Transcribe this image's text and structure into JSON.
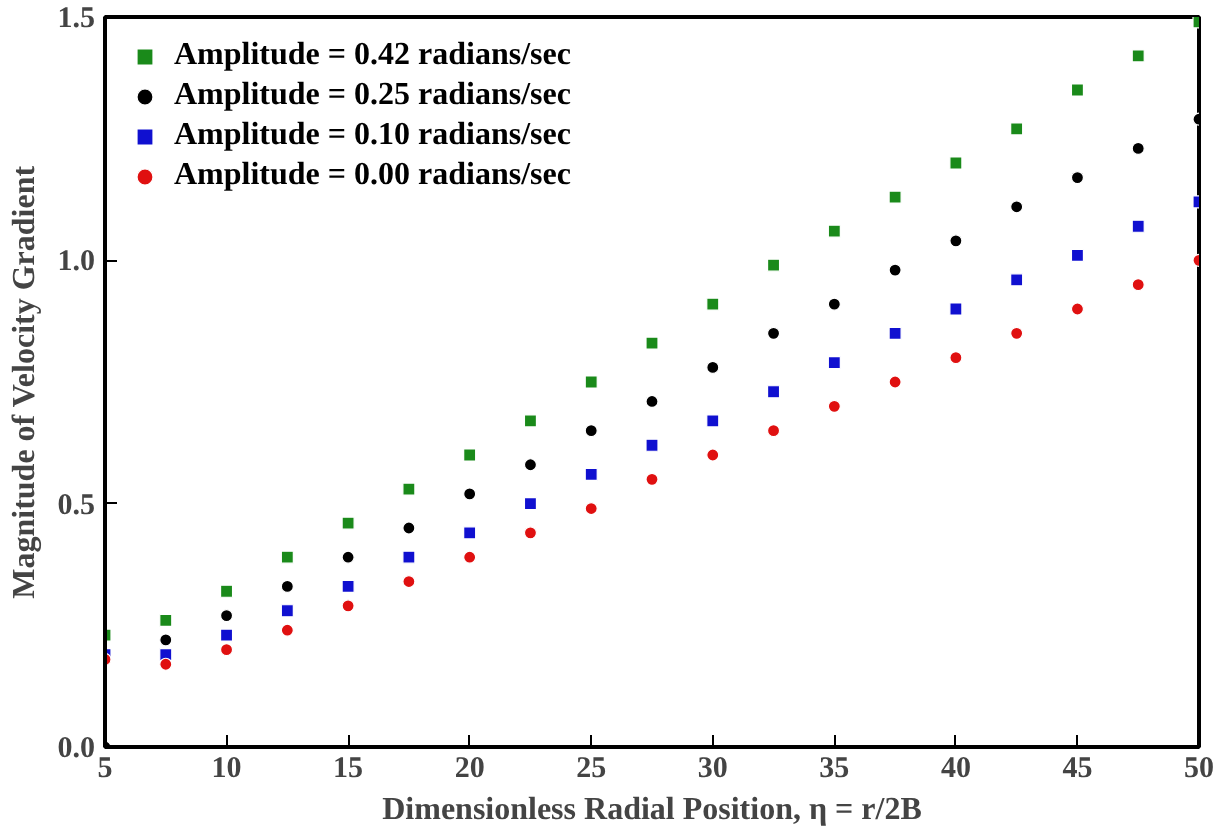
{
  "chart_data": {
    "type": "scatter",
    "xlabel": "Dimensionless Radial Position, η = r/2B",
    "ylabel": "Magnitude of Velocity Gradient",
    "x": [
      5,
      7.5,
      10,
      12.5,
      15,
      17.5,
      20,
      22.5,
      25,
      27.5,
      30,
      32.5,
      35,
      37.5,
      40,
      42.5,
      45,
      47.5,
      50
    ],
    "series": [
      {
        "name": "Amplitude = 0.42 radians/sec",
        "color": "#1a8a1a",
        "marker": "square",
        "values": [
          0.23,
          0.26,
          0.32,
          0.39,
          0.46,
          0.53,
          0.6,
          0.67,
          0.75,
          0.83,
          0.91,
          0.99,
          1.06,
          1.13,
          1.2,
          1.27,
          1.35,
          1.42,
          1.49
        ]
      },
      {
        "name": "Amplitude = 0.25 radians/sec",
        "color": "#000000",
        "marker": "circle",
        "values": [
          null,
          0.22,
          0.27,
          0.33,
          0.39,
          0.45,
          0.52,
          0.58,
          0.65,
          0.71,
          0.78,
          0.85,
          0.91,
          0.98,
          1.04,
          1.11,
          1.17,
          1.23,
          1.29
        ]
      },
      {
        "name": "Amplitude = 0.10 radians/sec",
        "color": "#1010d0",
        "marker": "square",
        "values": [
          0.19,
          0.19,
          0.23,
          0.28,
          0.33,
          0.39,
          0.44,
          0.5,
          0.56,
          0.62,
          0.67,
          0.73,
          0.79,
          0.85,
          0.9,
          0.96,
          1.01,
          1.07,
          1.12
        ]
      },
      {
        "name": "Amplitude = 0.00 radians/sec",
        "color": "#e01010",
        "marker": "circle",
        "values": [
          0.18,
          0.17,
          0.2,
          0.24,
          0.29,
          0.34,
          0.39,
          0.44,
          0.49,
          0.55,
          0.6,
          0.65,
          0.7,
          0.75,
          0.8,
          0.85,
          0.9,
          0.95,
          1.0
        ]
      }
    ],
    "xlim": [
      5,
      50
    ],
    "ylim": [
      0,
      1.5
    ],
    "xticks": [
      5,
      10,
      15,
      20,
      25,
      30,
      35,
      40,
      45,
      50
    ],
    "yticks": [
      {
        "value": 0,
        "label": "0.0"
      },
      {
        "value": 0.5,
        "label": "0.5"
      },
      {
        "value": 1,
        "label": "1.0"
      },
      {
        "value": 1.5,
        "label": "1.5"
      }
    ],
    "grid": false,
    "legend": "top left"
  }
}
